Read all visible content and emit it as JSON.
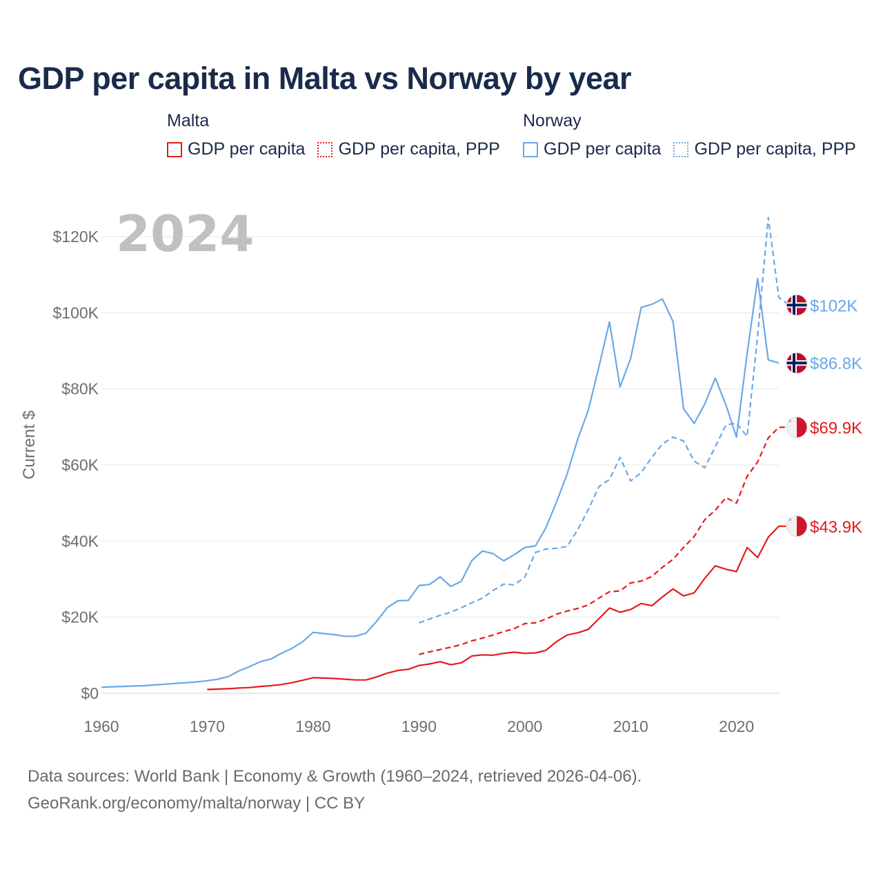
{
  "title": "GDP per capita in Malta vs Norway by year",
  "legend": {
    "malta": {
      "group": "Malta",
      "gdp": "GDP per capita",
      "ppp": "GDP per capita, PPP"
    },
    "norway": {
      "group": "Norway",
      "gdp": "GDP per capita",
      "ppp": "GDP per capita, PPP"
    }
  },
  "footer": {
    "line1": "Data sources: World Bank | Economy & Growth (1960–2024, retrieved 2026-04-06).",
    "line2": "GeoRank.org/economy/malta/norway | CC BY"
  },
  "colors": {
    "malta": "#e41a1c",
    "norway": "#6aa8e4",
    "grid": "#e6e6e6"
  },
  "chart_data": {
    "type": "line",
    "title": "GDP per capita in Malta vs Norway by year",
    "year_label": "2024",
    "xlabel": "",
    "ylabel": "Current $",
    "xlim": [
      1960,
      2024
    ],
    "ylim": [
      0,
      120000
    ],
    "x_ticks": [
      1960,
      1970,
      1980,
      1990,
      2000,
      2010,
      2020
    ],
    "y_ticks": [
      0,
      20000,
      40000,
      60000,
      80000,
      100000,
      120000
    ],
    "y_tick_labels": [
      "$0",
      "$20K",
      "$40K",
      "$60K",
      "$80K",
      "$100K",
      "$120K"
    ],
    "series": [
      {
        "name": "Norway GDP per capita",
        "country": "norway",
        "style": "solid",
        "end_label": "$86.8K",
        "points": [
          [
            1960,
            1600
          ],
          [
            1961,
            1700
          ],
          [
            1962,
            1800
          ],
          [
            1963,
            1900
          ],
          [
            1964,
            2000
          ],
          [
            1965,
            2200
          ],
          [
            1966,
            2400
          ],
          [
            1967,
            2600
          ],
          [
            1968,
            2800
          ],
          [
            1969,
            3000
          ],
          [
            1970,
            3300
          ],
          [
            1971,
            3700
          ],
          [
            1972,
            4400
          ],
          [
            1973,
            5900
          ],
          [
            1974,
            7000
          ],
          [
            1975,
            8300
          ],
          [
            1976,
            9000
          ],
          [
            1977,
            10500
          ],
          [
            1978,
            11800
          ],
          [
            1979,
            13500
          ],
          [
            1980,
            16000
          ],
          [
            1981,
            15700
          ],
          [
            1982,
            15400
          ],
          [
            1983,
            15000
          ],
          [
            1984,
            15000
          ],
          [
            1985,
            15800
          ],
          [
            1986,
            18900
          ],
          [
            1987,
            22500
          ],
          [
            1988,
            24300
          ],
          [
            1989,
            24400
          ],
          [
            1990,
            28300
          ],
          [
            1991,
            28600
          ],
          [
            1992,
            30600
          ],
          [
            1993,
            28100
          ],
          [
            1994,
            29400
          ],
          [
            1995,
            34900
          ],
          [
            1996,
            37400
          ],
          [
            1997,
            36700
          ],
          [
            1998,
            34800
          ],
          [
            1999,
            36400
          ],
          [
            2000,
            38300
          ],
          [
            2001,
            38700
          ],
          [
            2002,
            43500
          ],
          [
            2003,
            50300
          ],
          [
            2004,
            57600
          ],
          [
            2005,
            66800
          ],
          [
            2006,
            74400
          ],
          [
            2007,
            85800
          ],
          [
            2008,
            97600
          ],
          [
            2009,
            80500
          ],
          [
            2010,
            88000
          ],
          [
            2011,
            101400
          ],
          [
            2012,
            102200
          ],
          [
            2013,
            103600
          ],
          [
            2014,
            97700
          ],
          [
            2015,
            74800
          ],
          [
            2016,
            70900
          ],
          [
            2017,
            76000
          ],
          [
            2018,
            82800
          ],
          [
            2019,
            75800
          ],
          [
            2020,
            67300
          ],
          [
            2021,
            89200
          ],
          [
            2022,
            109000
          ],
          [
            2023,
            87600
          ],
          [
            2024,
            86800
          ]
        ]
      },
      {
        "name": "Norway GDP per capita, PPP",
        "country": "norway",
        "style": "dashed",
        "end_label": "$102K",
        "points": [
          [
            1990,
            18500
          ],
          [
            1991,
            19500
          ],
          [
            1992,
            20500
          ],
          [
            1993,
            21300
          ],
          [
            1994,
            22500
          ],
          [
            1995,
            23800
          ],
          [
            1996,
            25000
          ],
          [
            1997,
            27000
          ],
          [
            1998,
            28700
          ],
          [
            1999,
            28500
          ],
          [
            2000,
            30500
          ],
          [
            2001,
            37000
          ],
          [
            2002,
            37900
          ],
          [
            2003,
            38100
          ],
          [
            2004,
            38600
          ],
          [
            2005,
            43000
          ],
          [
            2006,
            48300
          ],
          [
            2007,
            54300
          ],
          [
            2008,
            56200
          ],
          [
            2009,
            62000
          ],
          [
            2010,
            55800
          ],
          [
            2011,
            58000
          ],
          [
            2012,
            62000
          ],
          [
            2013,
            65500
          ],
          [
            2014,
            67300
          ],
          [
            2015,
            66300
          ],
          [
            2016,
            61000
          ],
          [
            2017,
            59300
          ],
          [
            2018,
            64800
          ],
          [
            2019,
            70500
          ],
          [
            2020,
            71000
          ],
          [
            2021,
            67500
          ],
          [
            2022,
            94000
          ],
          [
            2023,
            125000
          ],
          [
            2024,
            104000
          ],
          [
            2025,
            102000
          ]
        ]
      },
      {
        "name": "Malta GDP per capita",
        "country": "malta",
        "style": "solid",
        "end_label": "$43.9K",
        "points": [
          [
            1970,
            1000
          ],
          [
            1971,
            1100
          ],
          [
            1972,
            1200
          ],
          [
            1973,
            1400
          ],
          [
            1974,
            1500
          ],
          [
            1975,
            1800
          ],
          [
            1976,
            2000
          ],
          [
            1977,
            2300
          ],
          [
            1978,
            2800
          ],
          [
            1979,
            3400
          ],
          [
            1980,
            4100
          ],
          [
            1981,
            4000
          ],
          [
            1982,
            3900
          ],
          [
            1983,
            3700
          ],
          [
            1984,
            3500
          ],
          [
            1985,
            3500
          ],
          [
            1986,
            4300
          ],
          [
            1987,
            5300
          ],
          [
            1988,
            6000
          ],
          [
            1989,
            6300
          ],
          [
            1990,
            7300
          ],
          [
            1991,
            7700
          ],
          [
            1992,
            8300
          ],
          [
            1993,
            7500
          ],
          [
            1994,
            8000
          ],
          [
            1995,
            9800
          ],
          [
            1996,
            10100
          ],
          [
            1997,
            10000
          ],
          [
            1998,
            10500
          ],
          [
            1999,
            10800
          ],
          [
            2000,
            10500
          ],
          [
            2001,
            10600
          ],
          [
            2002,
            11300
          ],
          [
            2003,
            13600
          ],
          [
            2004,
            15300
          ],
          [
            2005,
            15900
          ],
          [
            2006,
            16800
          ],
          [
            2007,
            19600
          ],
          [
            2008,
            22400
          ],
          [
            2009,
            21300
          ],
          [
            2010,
            22000
          ],
          [
            2011,
            23600
          ],
          [
            2012,
            23000
          ],
          [
            2013,
            25300
          ],
          [
            2014,
            27400
          ],
          [
            2015,
            25600
          ],
          [
            2016,
            26400
          ],
          [
            2017,
            30200
          ],
          [
            2018,
            33500
          ],
          [
            2019,
            32600
          ],
          [
            2020,
            32000
          ],
          [
            2021,
            38300
          ],
          [
            2022,
            35700
          ],
          [
            2023,
            41000
          ],
          [
            2024,
            43900
          ],
          [
            2025,
            43900
          ]
        ]
      },
      {
        "name": "Malta GDP per capita, PPP",
        "country": "malta",
        "style": "dashed",
        "end_label": "$69.9K",
        "points": [
          [
            1990,
            10200
          ],
          [
            1991,
            10900
          ],
          [
            1992,
            11500
          ],
          [
            1993,
            12100
          ],
          [
            1994,
            12800
          ],
          [
            1995,
            13800
          ],
          [
            1996,
            14500
          ],
          [
            1997,
            15300
          ],
          [
            1998,
            16200
          ],
          [
            1999,
            17000
          ],
          [
            2000,
            18300
          ],
          [
            2001,
            18500
          ],
          [
            2002,
            19500
          ],
          [
            2003,
            20800
          ],
          [
            2004,
            21600
          ],
          [
            2005,
            22300
          ],
          [
            2006,
            23200
          ],
          [
            2007,
            25000
          ],
          [
            2008,
            26700
          ],
          [
            2009,
            26900
          ],
          [
            2010,
            29000
          ],
          [
            2011,
            29500
          ],
          [
            2012,
            30700
          ],
          [
            2013,
            33100
          ],
          [
            2014,
            35200
          ],
          [
            2015,
            38300
          ],
          [
            2016,
            41200
          ],
          [
            2017,
            45600
          ],
          [
            2018,
            48100
          ],
          [
            2019,
            51400
          ],
          [
            2020,
            50000
          ],
          [
            2021,
            57000
          ],
          [
            2022,
            60800
          ],
          [
            2023,
            67100
          ],
          [
            2024,
            69900
          ],
          [
            2025,
            69900
          ]
        ]
      }
    ]
  }
}
